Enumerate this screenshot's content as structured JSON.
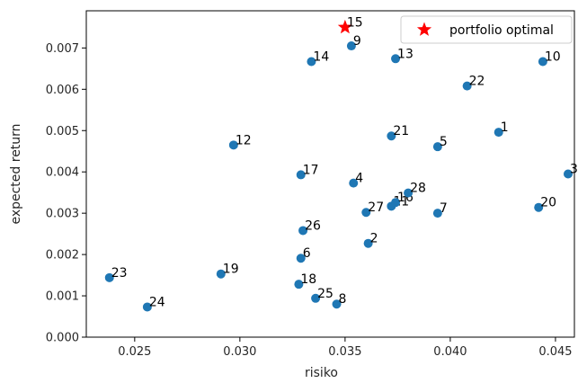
{
  "chart_data": {
    "type": "scatter",
    "title": "",
    "xlabel": "risiko",
    "ylabel": "expected return",
    "xlim": [
      0.0227,
      0.0459
    ],
    "ylim": [
      0.0,
      0.0079
    ],
    "xticks": [
      0.025,
      0.03,
      0.035,
      0.04,
      0.045
    ],
    "xtick_labels": [
      "0.025",
      "0.030",
      "0.035",
      "0.040",
      "0.045"
    ],
    "yticks": [
      0.0,
      0.001,
      0.002,
      0.003,
      0.004,
      0.005,
      0.006,
      0.007
    ],
    "ytick_labels": [
      "0.000",
      "0.001",
      "0.002",
      "0.003",
      "0.004",
      "0.005",
      "0.006",
      "0.007"
    ],
    "grid": false,
    "legend_position": "top-right",
    "colors": {
      "points": "#1f77b4",
      "optimal": "#ff0000"
    },
    "series": [
      {
        "marker": "circle",
        "points": [
          {
            "label": "1",
            "x": 0.0423,
            "y": 0.00496
          },
          {
            "label": "2",
            "x": 0.0361,
            "y": 0.00227
          },
          {
            "label": "3",
            "x": 0.0456,
            "y": 0.00395
          },
          {
            "label": "4",
            "x": 0.0354,
            "y": 0.00373
          },
          {
            "label": "5",
            "x": 0.0394,
            "y": 0.00461
          },
          {
            "label": "6",
            "x": 0.0329,
            "y": 0.00191
          },
          {
            "label": "7",
            "x": 0.0394,
            "y": 0.003
          },
          {
            "label": "8",
            "x": 0.0346,
            "y": 0.0008
          },
          {
            "label": "9",
            "x": 0.0353,
            "y": 0.00705
          },
          {
            "label": "10",
            "x": 0.0444,
            "y": 0.00667
          },
          {
            "label": "11",
            "x": 0.0372,
            "y": 0.00317
          },
          {
            "label": "12",
            "x": 0.0297,
            "y": 0.00465
          },
          {
            "label": "13",
            "x": 0.0374,
            "y": 0.00674
          },
          {
            "label": "14",
            "x": 0.0334,
            "y": 0.00667
          },
          {
            "label": "16",
            "x": 0.0374,
            "y": 0.00326
          },
          {
            "label": "17",
            "x": 0.0329,
            "y": 0.00393
          },
          {
            "label": "18",
            "x": 0.0328,
            "y": 0.00128
          },
          {
            "label": "19",
            "x": 0.0291,
            "y": 0.00153
          },
          {
            "label": "20",
            "x": 0.0442,
            "y": 0.00314
          },
          {
            "label": "21",
            "x": 0.0372,
            "y": 0.00487
          },
          {
            "label": "22",
            "x": 0.0408,
            "y": 0.00608
          },
          {
            "label": "23",
            "x": 0.0238,
            "y": 0.00144
          },
          {
            "label": "24",
            "x": 0.0256,
            "y": 0.00073
          },
          {
            "label": "25",
            "x": 0.0336,
            "y": 0.00094
          },
          {
            "label": "26",
            "x": 0.033,
            "y": 0.00258
          },
          {
            "label": "27",
            "x": 0.036,
            "y": 0.00302
          },
          {
            "label": "28",
            "x": 0.038,
            "y": 0.00349
          }
        ]
      },
      {
        "name": "portfolio optimal",
        "marker": "star",
        "points": [
          {
            "label": "15",
            "x": 0.035,
            "y": 0.0075
          }
        ]
      }
    ]
  }
}
